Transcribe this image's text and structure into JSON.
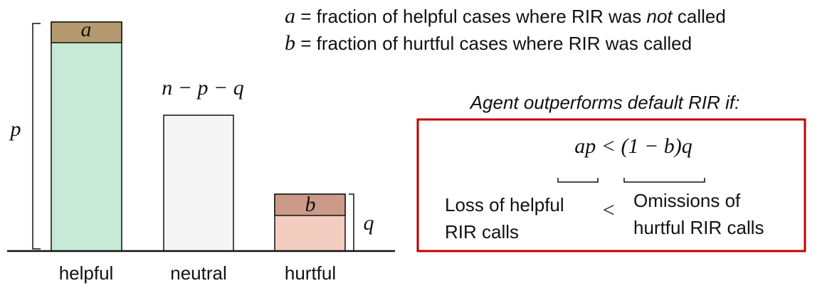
{
  "bars": [
    {
      "label": "helpful",
      "segment_label": "a"
    },
    {
      "label": "neutral",
      "segment_label": "n − p − q"
    },
    {
      "label": "hurtful",
      "segment_label": "b"
    }
  ],
  "brackets": {
    "left": "p",
    "right": "q"
  },
  "definitions": [
    {
      "symbol": "a",
      "text": " = fraction of helpful cases where RIR was ",
      "emphasis": "not",
      "tail": " called"
    },
    {
      "symbol": "b",
      "text": " = fraction of hurtful cases where RIR was called"
    }
  ],
  "condition": {
    "title": "Agent outperforms  default RIR if:",
    "formula": "ap < (1 − b)q",
    "left_note": [
      "Loss of helpful",
      "RIR calls"
    ],
    "relation": "<",
    "right_note": [
      "Omissions of",
      "hurtful RIR calls"
    ]
  }
}
